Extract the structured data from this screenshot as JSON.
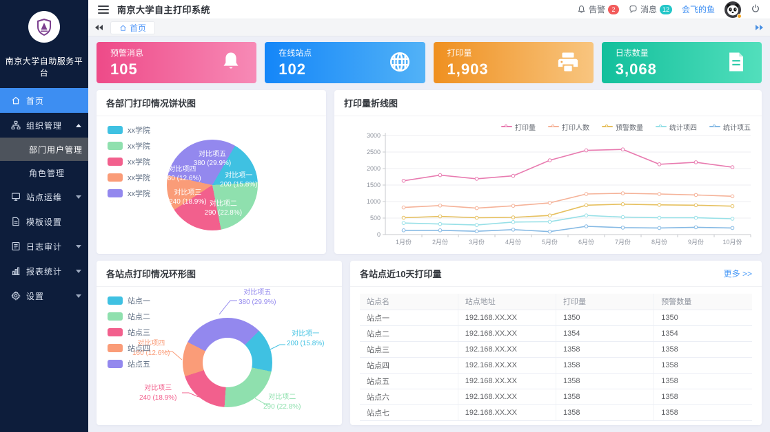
{
  "header": {
    "title": "南京大学自主打印系统",
    "alarm_label": "告警",
    "alarm_count": "2",
    "message_label": "消息",
    "message_count": "12",
    "username": "会飞的鱼"
  },
  "sidebar": {
    "platform_name": "南京大学自助服务平台",
    "menu": [
      {
        "icon": "home-icon",
        "label": "首页",
        "active": true
      },
      {
        "icon": "org-icon",
        "label": "组织管理",
        "expanded": true,
        "children": [
          {
            "label": "部门用户管理",
            "active": true
          },
          {
            "label": "角色管理",
            "active": false
          }
        ]
      },
      {
        "icon": "site-icon",
        "label": "站点运维",
        "arrow": "down"
      },
      {
        "icon": "template-icon",
        "label": "模板设置"
      },
      {
        "icon": "log-icon",
        "label": "日志审计",
        "arrow": "down"
      },
      {
        "icon": "report-icon",
        "label": "报表统计",
        "arrow": "down"
      },
      {
        "icon": "settings-icon",
        "label": "设置",
        "arrow": "down"
      }
    ]
  },
  "tabbar": {
    "active_tab_label": "首页"
  },
  "stats": [
    {
      "label": "预警消息",
      "value": "105",
      "icon": "bell-icon",
      "gradient": [
        "#ee4a88",
        "#f78ab6"
      ]
    },
    {
      "label": "在线站点",
      "value": "102",
      "icon": "globe-icon",
      "gradient": [
        "#1486f8",
        "#52b2f7"
      ]
    },
    {
      "label": "打印量",
      "value": "1,903",
      "icon": "printer-icon",
      "gradient": [
        "#ef9020",
        "#f8c57f"
      ]
    },
    {
      "label": "日志数量",
      "value": "3,068",
      "icon": "document-icon",
      "gradient": [
        "#12bf9c",
        "#52dfbc"
      ]
    }
  ],
  "panels": {
    "pie": {
      "title": "各部门打印情况饼状图"
    },
    "line": {
      "title": "打印量折线图"
    },
    "donut": {
      "title": "各站点打印情况环形图"
    },
    "table": {
      "title": "各站点近10天打印量",
      "more_label": "更多 >>",
      "headers": [
        "站点名",
        "站点地址",
        "打印量",
        "预警数量"
      ],
      "rows": [
        [
          "站点一",
          "192.168.XX.XX",
          "1350",
          "1350"
        ],
        [
          "站点二",
          "192.168.XX.XX",
          "1354",
          "1354"
        ],
        [
          "站点三",
          "192.168.XX.XX",
          "1358",
          "1358"
        ],
        [
          "站点四",
          "192.168.XX.XX",
          "1358",
          "1358"
        ],
        [
          "站点五",
          "192.168.XX.XX",
          "1358",
          "1358"
        ],
        [
          "站点六",
          "192.168.XX.XX",
          "1358",
          "1358"
        ],
        [
          "站点七",
          "192.168.XX.XX",
          "1358",
          "1358"
        ]
      ]
    }
  },
  "chart_data": [
    {
      "type": "pie",
      "title": "各部门打印情况饼状图",
      "legend": [
        "xx学院",
        "xx学院",
        "xx学院",
        "xx学院",
        "xx学院"
      ],
      "legend_position": "top-left",
      "start_angle_deg": 30,
      "slices": [
        {
          "name": "对比项一",
          "value": 200,
          "percent": "15.8%",
          "label": "200 (15.8%)",
          "color": "#3fc1e2"
        },
        {
          "name": "对比项二",
          "value": 290,
          "percent": "22.8%",
          "label": "290 (22.8%)",
          "color": "#8fe0ae"
        },
        {
          "name": "对比项三",
          "value": 240,
          "percent": "18.9%",
          "label": "240 (18.9%)",
          "color": "#f2608d"
        },
        {
          "name": "对比项四",
          "value": 160,
          "percent": "12.6%",
          "label": "160 (12.6%)",
          "color": "#fa9c78"
        },
        {
          "name": "对比项五",
          "value": 380,
          "percent": "29.9%",
          "label": "380 (29.9%)",
          "color": "#9388ee"
        }
      ]
    },
    {
      "type": "line",
      "title": "打印量折线图",
      "x": [
        "1月份",
        "2月份",
        "3月份",
        "4月份",
        "5月份",
        "6月份",
        "7月份",
        "8月份",
        "9月份",
        "10月份"
      ],
      "ylim": [
        0,
        3000
      ],
      "yticks": [
        0,
        500,
        1000,
        1500,
        2000,
        2500,
        3000
      ],
      "grid": true,
      "legend_position": "top-right",
      "series": [
        {
          "name": "打印量",
          "color": "#e87bb0",
          "values": [
            1630,
            1800,
            1690,
            1780,
            2250,
            2550,
            2580,
            2130,
            2190,
            2040
          ]
        },
        {
          "name": "打印人数",
          "color": "#f5b298",
          "values": [
            820,
            880,
            800,
            870,
            960,
            1230,
            1250,
            1230,
            1200,
            1160
          ]
        },
        {
          "name": "预警数量",
          "color": "#e6c05f",
          "values": [
            510,
            550,
            510,
            520,
            580,
            890,
            920,
            900,
            890,
            860
          ]
        },
        {
          "name": "统计项四",
          "color": "#97e0e7",
          "values": [
            350,
            320,
            290,
            380,
            390,
            580,
            530,
            510,
            510,
            480
          ]
        },
        {
          "name": "统计项五",
          "color": "#85b9e4",
          "values": [
            130,
            130,
            100,
            150,
            90,
            250,
            210,
            200,
            220,
            200
          ]
        }
      ]
    },
    {
      "type": "pie",
      "subtype": "donut",
      "title": "各站点打印情况环形图",
      "legend": [
        "站点一",
        "站点二",
        "站点三",
        "站点四",
        "站点五"
      ],
      "legend_position": "top-left",
      "start_angle_deg": 45,
      "slices": [
        {
          "name": "对比项一",
          "value": 200,
          "percent": "15.8%",
          "label": "200 (15.8%)",
          "color": "#3fc1e2"
        },
        {
          "name": "对比项二",
          "value": 290,
          "percent": "22.8%",
          "label": "290 (22.8%)",
          "color": "#8fe0ae"
        },
        {
          "name": "对比项三",
          "value": 240,
          "percent": "18.9%",
          "label": "240 (18.9%)",
          "color": "#f2608d"
        },
        {
          "name": "对比项四",
          "value": 160,
          "percent": "12.6%",
          "label": "160 (12.6%)",
          "color": "#fa9c78"
        },
        {
          "name": "对比项五",
          "value": 380,
          "percent": "29.9%",
          "label": "380 (29.9%)",
          "color": "#9388ee"
        }
      ]
    }
  ]
}
